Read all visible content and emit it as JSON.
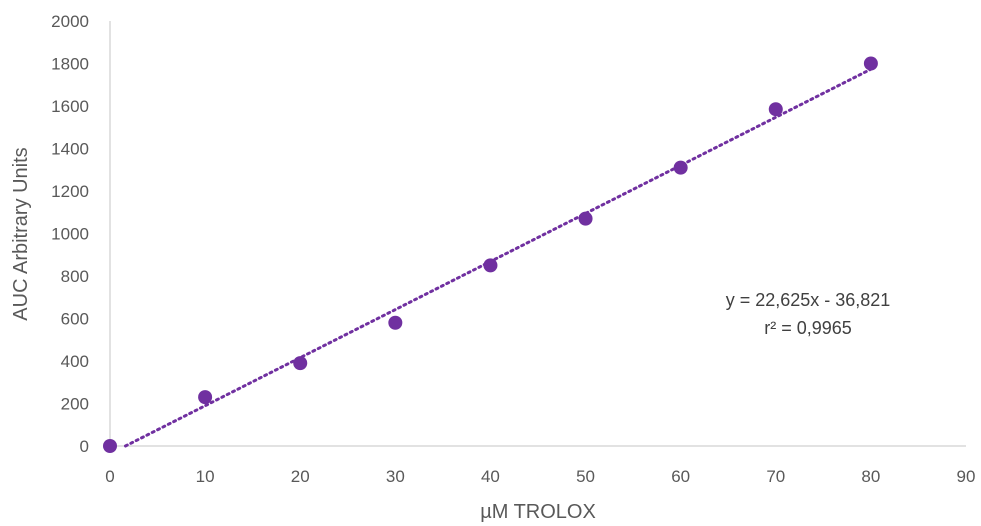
{
  "chart_data": {
    "type": "scatter",
    "title": "",
    "xlabel": "µM TROLOX",
    "ylabel": "AUC Arbitrary Units",
    "xlim": [
      0,
      90
    ],
    "ylim": [
      0,
      2000
    ],
    "x_ticks": [
      0,
      10,
      20,
      30,
      40,
      50,
      60,
      70,
      80,
      90
    ],
    "y_ticks": [
      0,
      200,
      400,
      600,
      800,
      1000,
      1200,
      1400,
      1600,
      1800,
      2000
    ],
    "grid": false,
    "legend": "none",
    "series": [
      {
        "x": [
          0,
          10,
          20,
          30,
          40,
          50,
          60,
          70,
          80
        ],
        "y": [
          0,
          230,
          390,
          580,
          850,
          1070,
          1310,
          1585,
          1800
        ],
        "color": "#7030A0"
      }
    ],
    "trendline": {
      "type": "linear",
      "slope": 22.625,
      "intercept": -36.821,
      "style": "dotted",
      "color": "#7030A0"
    },
    "annotations": {
      "equation": "y = 22,625x - 36,821",
      "r_squared": "r² = 0,9965"
    }
  }
}
